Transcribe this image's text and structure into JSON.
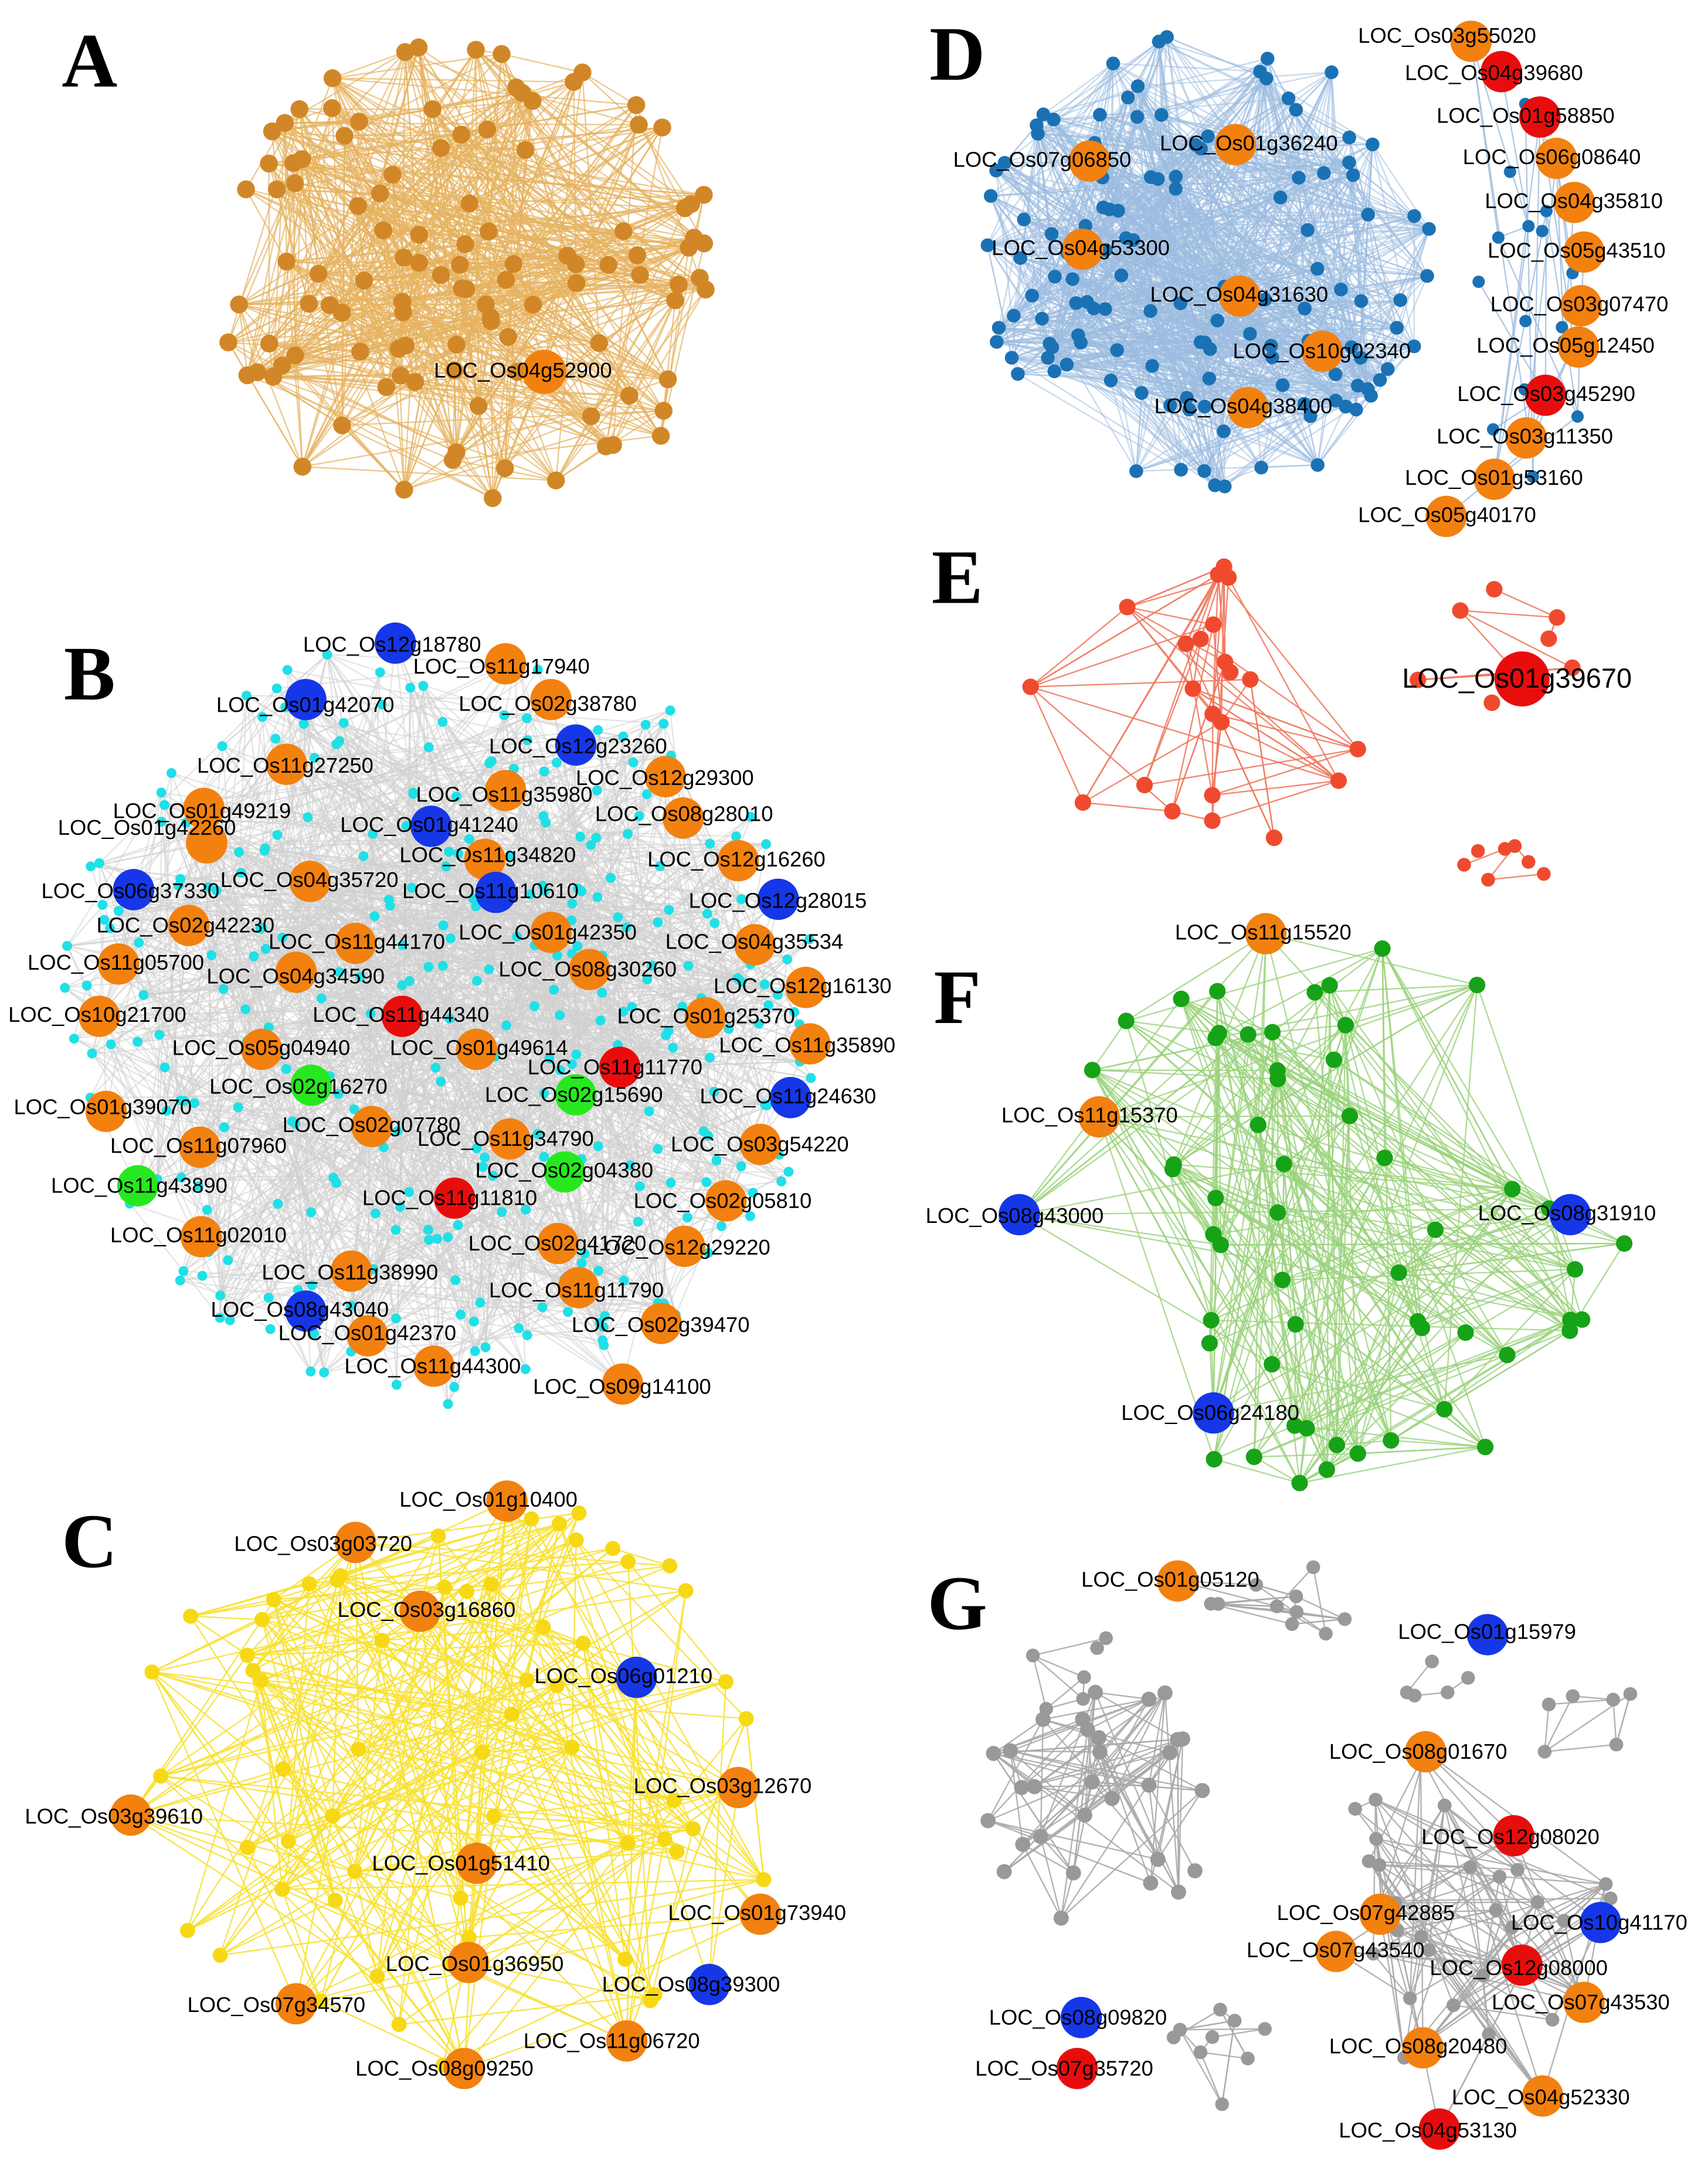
{
  "panels": [
    {
      "letter": "A",
      "nodes": [
        {
          "label": "LOC_Os04g52900",
          "color": "orange"
        }
      ]
    },
    {
      "letter": "B",
      "nodes": [
        {
          "label": "LOC_Os12g18780",
          "color": "blue"
        },
        {
          "label": "LOC_Os11g17940",
          "color": "orange"
        },
        {
          "label": "LOC_Os01g42070",
          "color": "blue"
        },
        {
          "label": "LOC_Os02g38780",
          "color": "orange"
        },
        {
          "label": "LOC_Os11g27250",
          "color": "orange"
        },
        {
          "label": "LOC_Os12g23260",
          "color": "blue"
        },
        {
          "label": "LOC_Os12g29300",
          "color": "orange"
        },
        {
          "label": "LOC_Os11g35980",
          "color": "orange"
        },
        {
          "label": "LOC_Os01g49219",
          "color": "orange"
        },
        {
          "label": "LOC_Os08g28010",
          "color": "orange"
        },
        {
          "label": "LOC_Os01g41240",
          "color": "blue"
        },
        {
          "label": "LOC_Os01g42260",
          "color": "orange"
        },
        {
          "label": "LOC_Os11g34820",
          "color": "orange"
        },
        {
          "label": "LOC_Os12g16260",
          "color": "orange"
        },
        {
          "label": "LOC_Os04g35720",
          "color": "orange"
        },
        {
          "label": "LOC_Os06g37330",
          "color": "blue"
        },
        {
          "label": "LOC_Os11g10610",
          "color": "blue"
        },
        {
          "label": "LOC_Os12g28015",
          "color": "blue"
        },
        {
          "label": "LOC_Os02g42230",
          "color": "orange"
        },
        {
          "label": "LOC_Os11g44170",
          "color": "orange"
        },
        {
          "label": "LOC_Os01g42350",
          "color": "orange"
        },
        {
          "label": "LOC_Os04g35534",
          "color": "orange"
        },
        {
          "label": "LOC_Os11g05700",
          "color": "orange"
        },
        {
          "label": "LOC_Os04g34590",
          "color": "orange"
        },
        {
          "label": "LOC_Os08g30260",
          "color": "orange"
        },
        {
          "label": "LOC_Os12g16130",
          "color": "orange"
        },
        {
          "label": "LOC_Os10g21700",
          "color": "orange"
        },
        {
          "label": "LOC_Os11g44340",
          "color": "red"
        },
        {
          "label": "LOC_Os01g25370",
          "color": "orange"
        },
        {
          "label": "LOC_Os05g04940",
          "color": "orange"
        },
        {
          "label": "LOC_Os01g49614",
          "color": "orange"
        },
        {
          "label": "LOC_Os11g11770",
          "color": "red"
        },
        {
          "label": "LOC_Os11g35890",
          "color": "orange"
        },
        {
          "label": "LOC_Os02g16270",
          "color": "green"
        },
        {
          "label": "LOC_Os02g15690",
          "color": "green"
        },
        {
          "label": "LOC_Os11g24630",
          "color": "blue"
        },
        {
          "label": "LOC_Os01g39070",
          "color": "orange"
        },
        {
          "label": "LOC_Os11g07960",
          "color": "orange"
        },
        {
          "label": "LOC_Os02g07780",
          "color": "orange"
        },
        {
          "label": "LOC_Os11g34790",
          "color": "orange"
        },
        {
          "label": "LOC_Os03g54220",
          "color": "orange"
        },
        {
          "label": "LOC_Os11g43890",
          "color": "green"
        },
        {
          "label": "LOC_Os02g04380",
          "color": "green"
        },
        {
          "label": "LOC_Os11g11810",
          "color": "red"
        },
        {
          "label": "LOC_Os02g05810",
          "color": "orange"
        },
        {
          "label": "LOC_Os11g02010",
          "color": "orange"
        },
        {
          "label": "LOC_Os02g41720",
          "color": "orange"
        },
        {
          "label": "LOC_Os12g29220",
          "color": "orange"
        },
        {
          "label": "LOC_Os11g38990",
          "color": "orange"
        },
        {
          "label": "LOC_Os11g11790",
          "color": "orange"
        },
        {
          "label": "LOC_Os08g43040",
          "color": "blue"
        },
        {
          "label": "LOC_Os01g42370",
          "color": "orange"
        },
        {
          "label": "LOC_Os02g39470",
          "color": "orange"
        },
        {
          "label": "LOC_Os11g44300",
          "color": "orange"
        },
        {
          "label": "LOC_Os09g14100",
          "color": "orange"
        }
      ]
    },
    {
      "letter": "C",
      "nodes": [
        {
          "label": "LOC_Os01g10400",
          "color": "orange"
        },
        {
          "label": "LOC_Os03g03720",
          "color": "orange"
        },
        {
          "label": "LOC_Os03g16860",
          "color": "orange"
        },
        {
          "label": "LOC_Os06g01210",
          "color": "blue"
        },
        {
          "label": "LOC_Os03g12670",
          "color": "orange"
        },
        {
          "label": "LOC_Os03g39610",
          "color": "orange"
        },
        {
          "label": "LOC_Os01g51410",
          "color": "orange"
        },
        {
          "label": "LOC_Os01g73940",
          "color": "orange"
        },
        {
          "label": "LOC_Os01g36950",
          "color": "orange"
        },
        {
          "label": "LOC_Os08g39300",
          "color": "blue"
        },
        {
          "label": "LOC_Os07g34570",
          "color": "orange"
        },
        {
          "label": "LOC_Os11g06720",
          "color": "orange"
        },
        {
          "label": "LOC_Os08g09250",
          "color": "orange"
        }
      ]
    },
    {
      "letter": "D",
      "nodes": [
        {
          "label": "LOC_Os03g55020",
          "color": "orange"
        },
        {
          "label": "LOC_Os04g39680",
          "color": "red"
        },
        {
          "label": "LOC_Os07g06850",
          "color": "orange"
        },
        {
          "label": "LOC_Os01g36240",
          "color": "orange"
        },
        {
          "label": "LOC_Os01g58850",
          "color": "red"
        },
        {
          "label": "LOC_Os06g08640",
          "color": "orange"
        },
        {
          "label": "LOC_Os04g35810",
          "color": "orange"
        },
        {
          "label": "LOC_Os04g53300",
          "color": "orange"
        },
        {
          "label": "LOC_Os05g43510",
          "color": "orange"
        },
        {
          "label": "LOC_Os04g31630",
          "color": "orange"
        },
        {
          "label": "LOC_Os03g07470",
          "color": "orange"
        },
        {
          "label": "LOC_Os10g02340",
          "color": "orange"
        },
        {
          "label": "LOC_Os05g12450",
          "color": "orange"
        },
        {
          "label": "LOC_Os04g38400",
          "color": "orange"
        },
        {
          "label": "LOC_Os03g45290",
          "color": "red"
        },
        {
          "label": "LOC_Os03g11350",
          "color": "orange"
        },
        {
          "label": "LOC_Os01g53160",
          "color": "orange"
        },
        {
          "label": "LOC_Os05g40170",
          "color": "orange"
        }
      ]
    },
    {
      "letter": "E",
      "nodes": [
        {
          "label": "LOC_Os01g39670",
          "color": "red"
        }
      ]
    },
    {
      "letter": "F",
      "nodes": [
        {
          "label": "LOC_Os11g15520",
          "color": "orange"
        },
        {
          "label": "LOC_Os11g15370",
          "color": "orange"
        },
        {
          "label": "LOC_Os08g43000",
          "color": "blue"
        },
        {
          "label": "LOC_Os08g31910",
          "color": "blue"
        },
        {
          "label": "LOC_Os06g24180",
          "color": "blue"
        }
      ]
    },
    {
      "letter": "G",
      "nodes": [
        {
          "label": "LOC_Os01g05120",
          "color": "orange"
        },
        {
          "label": "LOC_Os01g15979",
          "color": "blue"
        },
        {
          "label": "LOC_Os08g01670",
          "color": "orange"
        },
        {
          "label": "LOC_Os12g08020",
          "color": "red"
        },
        {
          "label": "LOC_Os07g42885",
          "color": "orange"
        },
        {
          "label": "LOC_Os10g41170",
          "color": "blue"
        },
        {
          "label": "LOC_Os07g43540",
          "color": "orange"
        },
        {
          "label": "LOC_Os12g08000",
          "color": "red"
        },
        {
          "label": "LOC_Os07g43530",
          "color": "orange"
        },
        {
          "label": "LOC_Os08g09820",
          "color": "blue"
        },
        {
          "label": "LOC_Os08g20480",
          "color": "orange"
        },
        {
          "label": "LOC_Os07g35720",
          "color": "red"
        },
        {
          "label": "LOC_Os04g52330",
          "color": "orange"
        },
        {
          "label": "LOC_Os04g53130",
          "color": "red"
        }
      ]
    }
  ]
}
